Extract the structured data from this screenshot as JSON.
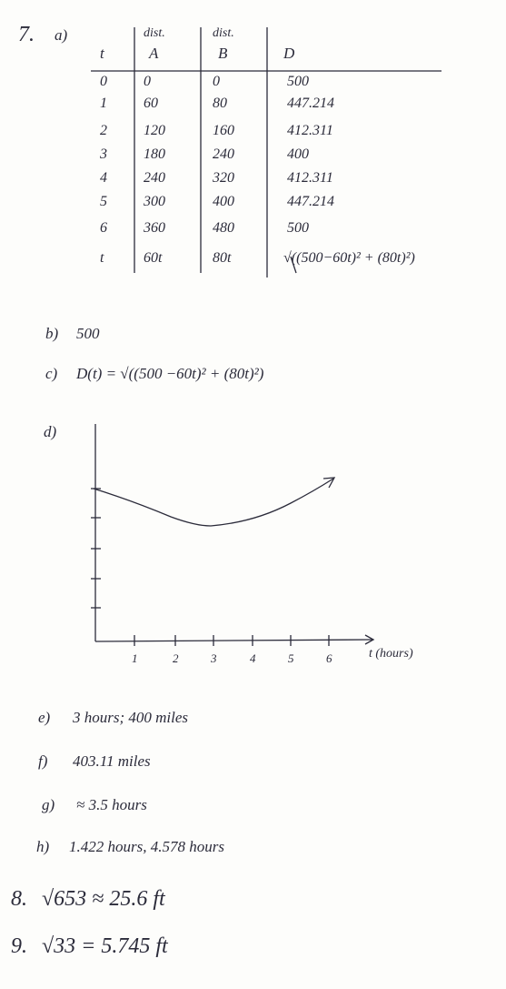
{
  "problem_7": {
    "number": "7.",
    "part_a": {
      "label": "a)",
      "table": {
        "header": [
          [
            "t"
          ],
          [
            "dist.",
            "A"
          ],
          [
            "dist.",
            "B"
          ],
          [
            "D"
          ]
        ],
        "rows": [
          [
            "0",
            "0",
            "0",
            "500"
          ],
          [
            "1",
            "60",
            "80",
            "447.214"
          ],
          [
            "2",
            "120",
            "160",
            "412.311"
          ],
          [
            "3",
            "180",
            "240",
            "400"
          ],
          [
            "4",
            "240",
            "320",
            "412.311"
          ],
          [
            "5",
            "300",
            "400",
            "447.214"
          ],
          [
            "6",
            "360",
            "480",
            "500"
          ],
          [
            "t",
            "60t",
            "80t",
            "√((500−60t)² + (80t)²)"
          ]
        ]
      }
    },
    "part_b": {
      "label": "b)",
      "answer": "500"
    },
    "part_c": {
      "label": "c)",
      "answer": "D(t) = √((500 −60t)² + (80t)²)"
    },
    "part_d": {
      "label": "d)",
      "x_axis_labels": [
        "1",
        "2",
        "3",
        "4",
        "5",
        "6"
      ],
      "x_axis_title": "t (hours)"
    },
    "part_e": {
      "label": "e)",
      "answer": "3 hours; 400 miles"
    },
    "part_f": {
      "label": "f)",
      "answer": "403.11 miles"
    },
    "part_g": {
      "label": "g)",
      "answer": "≈ 3.5 hours"
    },
    "part_h": {
      "label": "h)",
      "answer": "1.422 hours, 4.578 hours"
    }
  },
  "problem_8": {
    "number": "8.",
    "answer": "√653 ≈ 25.6 ft"
  },
  "problem_9": {
    "number": "9.",
    "answer": "√33 = 5.745 ft"
  }
}
